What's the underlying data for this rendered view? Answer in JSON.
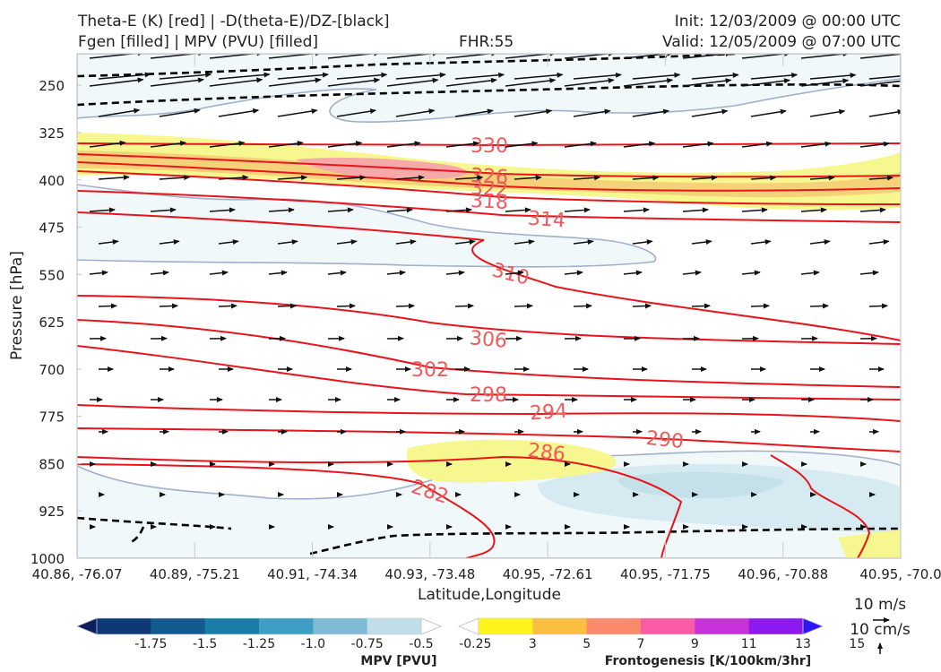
{
  "header": {
    "title_line1": "Theta-E (K) [red] | -D(theta-E)/DZ-[black]",
    "title_line2": "Fgen [filled] | MPV (PVU) [filled]",
    "fhr": "FHR:55",
    "init": "Init: 12/03/2009 @ 00:00 UTC",
    "valid": "Valid: 12/05/2009 @ 07:00 UTC"
  },
  "chart_data": {
    "type": "cross-section",
    "xlabel": "Latitude,Longitude",
    "ylabel": "Pressure [hPa]",
    "ylim": [
      1000,
      200
    ],
    "y_ticks": [
      250,
      325,
      400,
      475,
      550,
      625,
      700,
      775,
      850,
      925,
      1000
    ],
    "x_ticks": [
      "40.86, -76.07",
      "40.89, -75.21",
      "40.91, -74.34",
      "40.93, -73.48",
      "40.95, -72.61",
      "40.95, -71.75",
      "40.96, -70.88",
      "40.95, -70.0"
    ],
    "theta_e_contour_labels": [
      "330",
      "326",
      "322",
      "318",
      "314",
      "310",
      "306",
      "302",
      "298",
      "294",
      "290",
      "286",
      "282"
    ],
    "colors": {
      "theta_e": "#e8141c",
      "label": "#ef5b5b",
      "mpv_outline": "#9fb0cc",
      "mpv_fill": "#f1f8fa",
      "mpv_fill_deep": "#d5ebf1",
      "fgen_low": "#f7f78f",
      "fgen_mid": "#f5d27a",
      "fgen_high": "#f6a9a9"
    }
  },
  "colorbars": {
    "mpv": {
      "label": "MPV [PVU]",
      "ticks": [
        "-1.75",
        "-1.5",
        "-1.25",
        "-1.0",
        "-0.75",
        "-0.5",
        "-0.25"
      ],
      "colors": [
        "#0b1f5e",
        "#0d3a77",
        "#135a8f",
        "#1a7da8",
        "#3f9ec3",
        "#7dbbd5",
        "#bfdee8",
        "#ffffff"
      ]
    },
    "fgen": {
      "label": "Frontogenesis [K/100km/3hr]",
      "ticks": [
        "3",
        "5",
        "7",
        "9",
        "11",
        "13",
        "15"
      ],
      "colors": [
        "#ffffff",
        "#fff51a",
        "#fbbf3f",
        "#fb8a6c",
        "#fb5aa5",
        "#c832d8",
        "#8c19f0",
        "#2f16f5"
      ]
    }
  },
  "vector_key": {
    "speed": "10 m/s",
    "vertical": "10 cm/s"
  }
}
